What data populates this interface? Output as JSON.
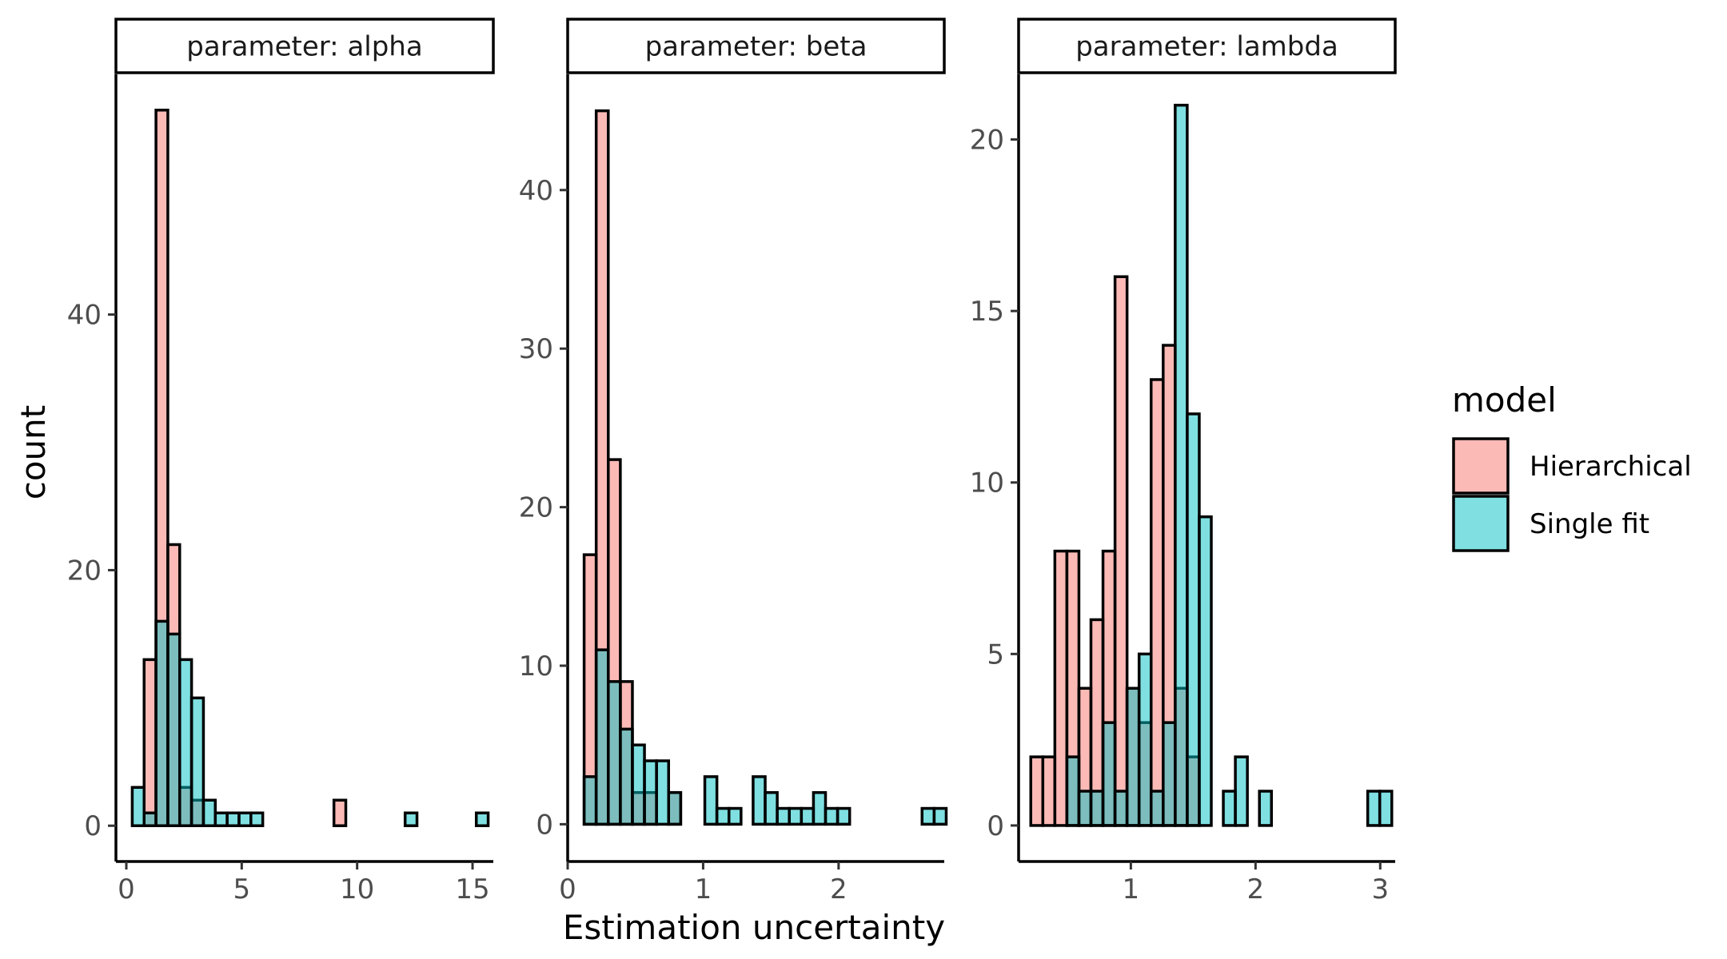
{
  "chart_data": {
    "type": "bar",
    "subtype": "faceted overlapping histogram",
    "xlabel": "Estimation uncertainty",
    "ylabel": "count",
    "legend": {
      "title": "model",
      "placement": "right",
      "entries": [
        {
          "name": "Hierarchical",
          "color": "#F8766D"
        },
        {
          "name": "Single fit",
          "color": "#00BFC4"
        }
      ]
    },
    "bar_opacity": 0.5,
    "outline_color": "#000000",
    "facets": [
      {
        "strip_label": "parameter: alpha",
        "binwidth": 0.514,
        "bin_start": 0.257,
        "xlim": [
          -0.45,
          15.9
        ],
        "ylim": [
          -2.8,
          58.8
        ],
        "x_ticks": [
          0,
          5,
          10,
          15
        ],
        "y_ticks": [
          0,
          20,
          40
        ],
        "series": [
          {
            "name": "Hierarchical",
            "counts": [
              0,
              13,
              56,
              22,
              3,
              2,
              0,
              0,
              0,
              0,
              0,
              0,
              0,
              0,
              0,
              0,
              0,
              2,
              0,
              0,
              0,
              0,
              0,
              0,
              0,
              0,
              0,
              0,
              0,
              0
            ]
          },
          {
            "name": "Single fit",
            "counts": [
              3,
              1,
              16,
              15,
              13,
              10,
              2,
              1,
              1,
              1,
              1,
              0,
              0,
              0,
              0,
              0,
              0,
              0,
              0,
              0,
              0,
              0,
              0,
              1,
              0,
              0,
              0,
              0,
              0,
              1
            ]
          }
        ]
      },
      {
        "strip_label": "parameter: beta",
        "binwidth": 0.0891,
        "bin_start": 0.1215,
        "xlim": [
          0,
          2.78
        ],
        "ylim": [
          -2.35,
          47.3
        ],
        "x_ticks": [
          0,
          1,
          2
        ],
        "y_ticks": [
          0,
          10,
          20,
          30,
          40
        ],
        "series": [
          {
            "name": "Hierarchical",
            "counts": [
              17,
              45,
              23,
              9,
              2,
              2,
              0,
              2,
              0,
              0,
              0,
              0,
              0,
              0,
              0,
              0,
              0,
              0,
              0,
              0,
              0,
              0,
              0,
              0,
              0,
              0,
              0,
              0,
              0,
              0
            ]
          },
          {
            "name": "Single fit",
            "counts": [
              3,
              11,
              9,
              6,
              5,
              4,
              4,
              2,
              0,
              0,
              3,
              1,
              1,
              0,
              3,
              2,
              1,
              1,
              1,
              2,
              1,
              1,
              0,
              0,
              0,
              0,
              0,
              0,
              1,
              1
            ]
          }
        ]
      },
      {
        "strip_label": "parameter: lambda",
        "binwidth": 0.0965,
        "bin_start": 0.1977,
        "xlim": [
          0.1,
          3.12
        ],
        "ylim": [
          -1.05,
          21.9
        ],
        "x_ticks": [
          1,
          2,
          3
        ],
        "y_ticks": [
          0,
          5,
          10,
          15,
          20
        ],
        "series": [
          {
            "name": "Hierarchical",
            "counts": [
              2,
              2,
              8,
              8,
              4,
              6,
              8,
              16,
              4,
              3,
              13,
              14,
              4,
              2,
              0,
              0,
              0,
              0,
              0,
              0,
              0,
              0,
              0,
              0,
              0,
              0,
              0,
              0,
              0,
              0
            ]
          },
          {
            "name": "Single fit",
            "counts": [
              0,
              0,
              0,
              2,
              1,
              1,
              3,
              1,
              4,
              5,
              1,
              3,
              21,
              12,
              9,
              0,
              1,
              2,
              0,
              1,
              0,
              0,
              0,
              0,
              0,
              0,
              0,
              0,
              1,
              1
            ]
          }
        ]
      }
    ]
  }
}
